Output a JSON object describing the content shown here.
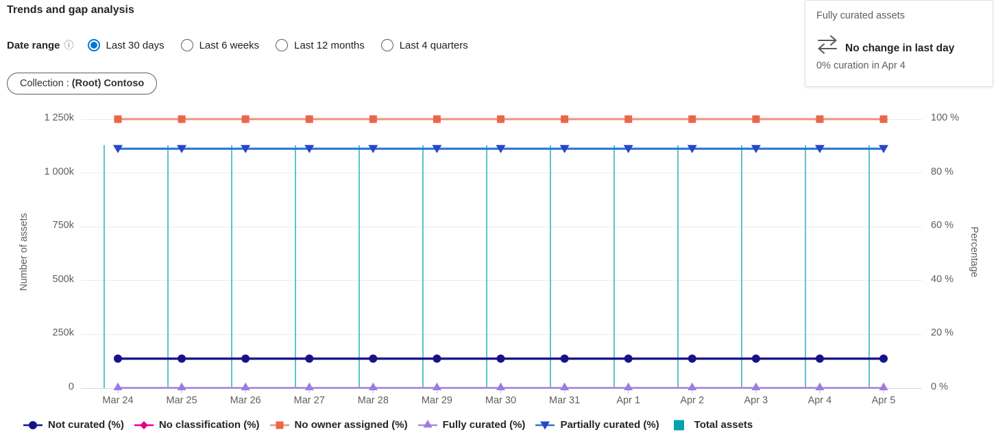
{
  "header": {
    "title": "Trends and gap analysis"
  },
  "controls": {
    "date_range_label": "Date range",
    "options": [
      {
        "label": "Last 30 days",
        "selected": true
      },
      {
        "label": "Last 6 weeks",
        "selected": false
      },
      {
        "label": "Last 12 months",
        "selected": false
      },
      {
        "label": "Last 4 quarters",
        "selected": false
      }
    ],
    "collection_filter": {
      "prefix": "Collection : ",
      "value": "(Root) Contoso"
    }
  },
  "card": {
    "title": "Fully curated assets",
    "icon": "swap-arrows-icon",
    "headline": "No change in last day",
    "subtext": "0% curation in Apr 4"
  },
  "colors": {
    "accent_blue": "#0078D4",
    "bar_teal": "#04A3AB",
    "coral_marker": "#EA664B",
    "coral_line": "#F0917F",
    "magenta": "#E3008C",
    "navy": "#16138A",
    "purple_line": "#A58CE0",
    "purple_marker": "#9C7CDF",
    "blue_line": "#2677D4",
    "blue_marker": "#2A46C6"
  },
  "chart_data": {
    "type": "combo bar+line",
    "categories": [
      "Mar 24",
      "Mar 25",
      "Mar 26",
      "Mar 27",
      "Mar 28",
      "Mar 29",
      "Mar 30",
      "Mar 31",
      "Apr 1",
      "Apr 2",
      "Apr 3",
      "Apr 4",
      "Apr 5"
    ],
    "left_axis": {
      "label": "Number of assets",
      "min": 0,
      "max": 1250000,
      "tick_labels": [
        "1 250k",
        "1 000k",
        "750k",
        "500k",
        "250k",
        "0"
      ]
    },
    "right_axis": {
      "label": "Percentage",
      "min": 0,
      "max": 100,
      "tick_labels": [
        "100 %",
        "80 %",
        "60 %",
        "40 %",
        "20 %",
        "0 %"
      ]
    },
    "grid": "horizontal only",
    "legend_position": "bottom",
    "series": [
      {
        "name": "Total assets",
        "type": "bar",
        "axis": "left",
        "color": "#04A3AB",
        "values": [
          1130000,
          1130000,
          1130000,
          1130000,
          1130000,
          1130000,
          1130000,
          1130000,
          1130000,
          1130000,
          1130000,
          1130000,
          1130000
        ]
      },
      {
        "name": "No classification (%)",
        "type": "line",
        "axis": "right",
        "marker": "diamond",
        "line_color": "#E3008C",
        "marker_color": "#E3008C",
        "values": [
          100,
          100,
          100,
          100,
          100,
          100,
          100,
          100,
          100,
          100,
          100,
          100,
          100
        ]
      },
      {
        "name": "No owner assigned (%)",
        "type": "line",
        "axis": "right",
        "marker": "square",
        "line_color": "#F0917F",
        "marker_color": "#EA664B",
        "values": [
          100,
          100,
          100,
          100,
          100,
          100,
          100,
          100,
          100,
          100,
          100,
          100,
          100
        ]
      },
      {
        "name": "Partially curated (%)",
        "type": "line",
        "axis": "right",
        "marker": "triangle-down",
        "line_color": "#2677D4",
        "marker_color": "#2A46C6",
        "values": [
          89,
          89,
          89,
          89,
          89,
          89,
          89,
          89,
          89,
          89,
          89,
          89,
          89
        ]
      },
      {
        "name": "Not curated (%)",
        "type": "line",
        "axis": "right",
        "marker": "circle",
        "line_color": "#16138A",
        "marker_color": "#16138A",
        "values": [
          11,
          11,
          11,
          11,
          11,
          11,
          11,
          11,
          11,
          11,
          11,
          11,
          11
        ]
      },
      {
        "name": "Fully curated (%)",
        "type": "line",
        "axis": "right",
        "marker": "triangle-up",
        "line_color": "#A58CE0",
        "marker_color": "#9C7CDF",
        "values": [
          0,
          0,
          0,
          0,
          0,
          0,
          0,
          0,
          0,
          0,
          0,
          0,
          0
        ]
      }
    ],
    "legend_order": [
      "Not curated (%)",
      "No classification (%)",
      "No owner assigned (%)",
      "Fully curated (%)",
      "Partially curated (%)",
      "Total assets"
    ]
  }
}
